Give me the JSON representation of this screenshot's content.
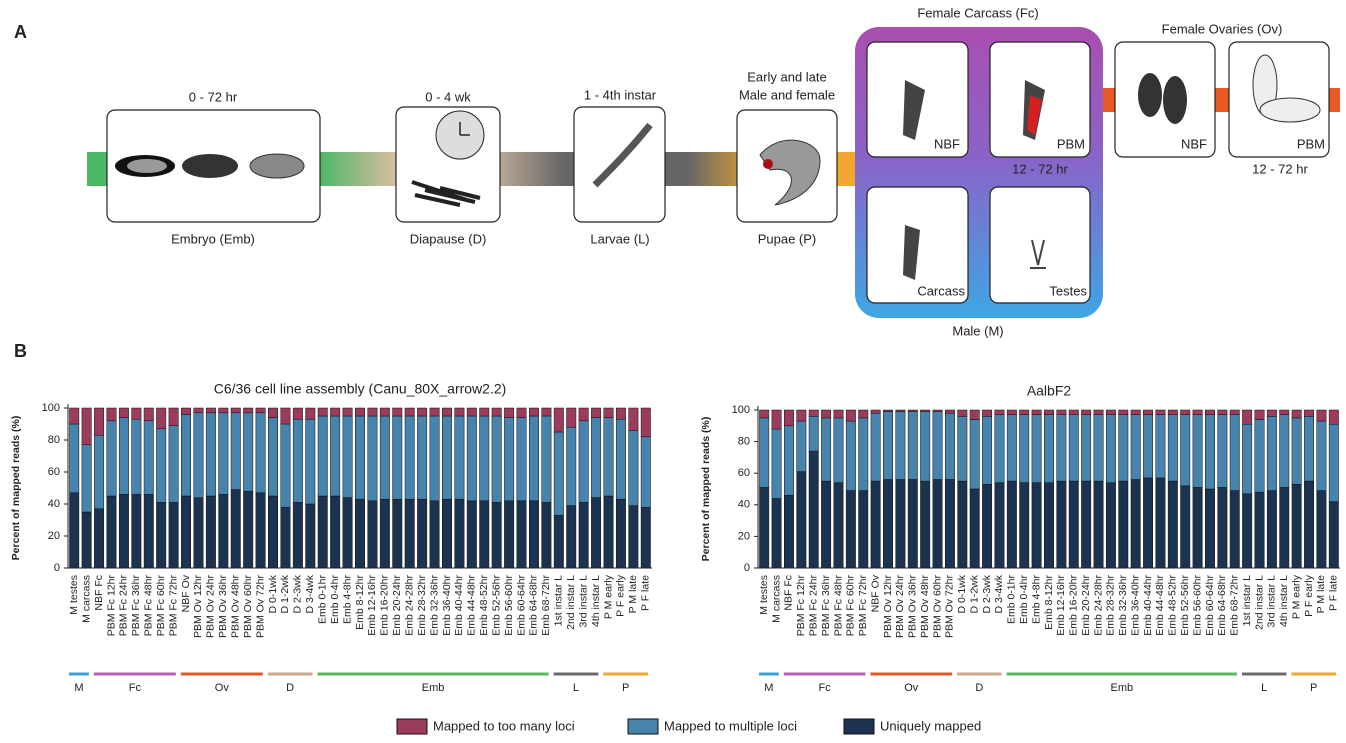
{
  "panels": {
    "a": "A",
    "b": "B"
  },
  "diagram": {
    "embryo": {
      "top": "0 - 72 hr",
      "label": "Embryo (Emb)"
    },
    "diapause": {
      "top": "0 - 4 wk",
      "label": "Diapause (D)"
    },
    "larvae": {
      "top": "1 - 4th instar",
      "label": "Larvae (L)"
    },
    "pupae": {
      "top": [
        "Early and late",
        "Male and female"
      ],
      "label": "Pupae (P)"
    },
    "female_carcass": {
      "title": "Female Carcass (Fc)",
      "nbf": "NBF",
      "pbm": "PBM",
      "pbm_time": "12 - 72 hr"
    },
    "male": {
      "title": "Male (M)",
      "carcass": "Carcass",
      "testes": "Testes"
    },
    "ovaries": {
      "title": "Female Ovaries (Ov)",
      "nbf": "NBF",
      "pbm": "PBM",
      "pbm_time": "12 - 72 hr"
    }
  },
  "chart_data": [
    {
      "type": "stacked-bar",
      "title": "C6/36 cell line assembly (Canu_80X_arrow2.2)",
      "ylabel": "Percent of mapped reads (%)",
      "ylim": [
        0,
        100
      ],
      "yticks": [
        0,
        20,
        40,
        60,
        80,
        100
      ],
      "categories": [
        "M testes",
        "M carcass",
        "NBF Fc",
        "PBM Fc 12hr",
        "PBM Fc 24hr",
        "PBM Fc 36hr",
        "PBM Fc 48hr",
        "PBM Fc 60hr",
        "PBM Fc 72hr",
        "NBF Ov",
        "PBM Ov 12hr",
        "PBM Ov 24hr",
        "PBM Ov 36hr",
        "PBM Ov 48hr",
        "PBM Ov 60hr",
        "PBM Ov 72hr",
        "D 0-1wk",
        "D 1-2wk",
        "D 2-3wk",
        "D 3-4wk",
        "Emb 0-1hr",
        "Emb 0-4hr",
        "Emb 4-8hr",
        "Emb 8-12hr",
        "Emb 12-16hr",
        "Emb 16-20hr",
        "Emb 20-24hr",
        "Emb 24-28hr",
        "Emb 28-32hr",
        "Emb 32-36hr",
        "Emb 36-40hr",
        "Emb 40-44hr",
        "Emb 44-48hr",
        "Emb 48-52hr",
        "Emb 52-56hr",
        "Emb 56-60hr",
        "Emb 60-64hr",
        "Emb 64-68hr",
        "Emb 68-72hr",
        "1st instar L",
        "2nd instar L",
        "3rd instar L",
        "4th instar L",
        "P M early",
        "P F early",
        "P M late",
        "P F late"
      ],
      "series": [
        {
          "name": "Uniquely mapped",
          "color": "#1b3351",
          "values": [
            47,
            35,
            37,
            45,
            46,
            46,
            46,
            41,
            41,
            45,
            44,
            45,
            46,
            49,
            48,
            47,
            45,
            38,
            41,
            40,
            45,
            45,
            44,
            43,
            42,
            43,
            43,
            43,
            43,
            42,
            43,
            43,
            42,
            42,
            41,
            42,
            42,
            42,
            41,
            33,
            39,
            41,
            44,
            45,
            43,
            39,
            38
          ]
        },
        {
          "name": "Mapped to multiple loci",
          "color": "#4683ad",
          "values": [
            43,
            42,
            46,
            47,
            48,
            47,
            46,
            46,
            48,
            51,
            53,
            52,
            51,
            48,
            49,
            50,
            49,
            52,
            52,
            53,
            50,
            50,
            51,
            52,
            53,
            52,
            52,
            52,
            52,
            53,
            52,
            52,
            53,
            53,
            54,
            52,
            52,
            53,
            54,
            52,
            49,
            51,
            50,
            49,
            50,
            47,
            44
          ]
        },
        {
          "name": "Mapped to too many loci",
          "color": "#9b3b5e",
          "values": [
            10,
            23,
            17,
            8,
            6,
            7,
            8,
            13,
            11,
            4,
            3,
            3,
            3,
            3,
            3,
            3,
            6,
            10,
            7,
            7,
            5,
            5,
            5,
            5,
            5,
            5,
            5,
            5,
            5,
            5,
            5,
            5,
            5,
            5,
            5,
            6,
            6,
            5,
            5,
            15,
            12,
            8,
            6,
            6,
            7,
            14,
            18
          ]
        }
      ],
      "groups": [
        {
          "label": "M",
          "color": "#3a9fd8",
          "bars": 2
        },
        {
          "label": "Fc",
          "color": "#b45fb0",
          "bars": 7
        },
        {
          "label": "Ov",
          "color": "#e5582a",
          "bars": 7
        },
        {
          "label": "D",
          "color": "#c9a98a",
          "bars": 4
        },
        {
          "label": "Emb",
          "color": "#5cb85c",
          "bars": 19
        },
        {
          "label": "L",
          "color": "#6b6b6b",
          "bars": 4
        },
        {
          "label": "P",
          "color": "#f0a830",
          "bars": 4
        }
      ]
    },
    {
      "type": "stacked-bar",
      "title": "AalbF2",
      "ylabel": "Percent of mapped reads (%)",
      "ylim": [
        0,
        100
      ],
      "yticks": [
        0,
        20,
        40,
        60,
        80,
        100
      ],
      "categories": [
        "M testes",
        "M carcass",
        "NBF Fc",
        "PBM Fc 12hr",
        "PBM Fc 24hr",
        "PBM Fc 36hr",
        "PBM Fc 48hr",
        "PBM Fc 60hr",
        "PBM Fc 72hr",
        "NBF Ov",
        "PBM Ov 12hr",
        "PBM Ov 24hr",
        "PBM Ov 36hr",
        "PBM Ov 48hr",
        "PBM Ov 60hr",
        "PBM Ov 72hr",
        "D 0-1wk",
        "D 1-2wk",
        "D 2-3wk",
        "D 3-4wk",
        "Emb 0-1hr",
        "Emb 0-4hr",
        "Emb 4-8hr",
        "Emb 8-12hr",
        "Emb 12-16hr",
        "Emb 16-20hr",
        "Emb 20-24hr",
        "Emb 24-28hr",
        "Emb 28-32hr",
        "Emb 32-36hr",
        "Emb 36-40hr",
        "Emb 40-44hr",
        "Emb 44-48hr",
        "Emb 48-52hr",
        "Emb 52-56hr",
        "Emb 56-60hr",
        "Emb 60-64hr",
        "Emb 64-68hr",
        "Emb 68-72hr",
        "1st instar L",
        "2nd instar L",
        "3rd instar L",
        "4th instar L",
        "P M early",
        "P F early",
        "P M late",
        "P F late"
      ],
      "series": [
        {
          "name": "Uniquely mapped",
          "color": "#1b3351",
          "values": [
            51,
            44,
            46,
            61,
            74,
            55,
            54,
            49,
            49,
            55,
            56,
            56,
            56,
            55,
            56,
            56,
            55,
            50,
            53,
            54,
            55,
            54,
            54,
            54,
            55,
            55,
            55,
            55,
            54,
            55,
            56,
            57,
            57,
            55,
            52,
            51,
            50,
            51,
            49,
            47,
            48,
            49,
            51,
            53,
            55,
            49,
            42
          ]
        },
        {
          "name": "Mapped to multiple loci",
          "color": "#4683ad",
          "values": [
            44,
            44,
            44,
            32,
            22,
            40,
            41,
            44,
            46,
            43,
            43,
            43,
            43,
            44,
            43,
            42,
            41,
            44,
            43,
            43,
            42,
            43,
            43,
            43,
            42,
            42,
            42,
            42,
            43,
            42,
            41,
            40,
            40,
            42,
            45,
            46,
            47,
            46,
            48,
            44,
            46,
            47,
            46,
            42,
            41,
            44,
            49
          ]
        },
        {
          "name": "Mapped to too many loci",
          "color": "#9b3b5e",
          "values": [
            5,
            12,
            10,
            7,
            4,
            5,
            5,
            7,
            5,
            2,
            1,
            1,
            1,
            1,
            1,
            2,
            4,
            6,
            4,
            3,
            3,
            3,
            3,
            3,
            3,
            3,
            3,
            3,
            3,
            3,
            3,
            3,
            3,
            3,
            3,
            3,
            3,
            3,
            3,
            9,
            6,
            4,
            3,
            5,
            4,
            7,
            9
          ]
        }
      ],
      "groups": [
        {
          "label": "M",
          "color": "#3a9fd8",
          "bars": 2
        },
        {
          "label": "Fc",
          "color": "#b45fb0",
          "bars": 7
        },
        {
          "label": "Ov",
          "color": "#e5582a",
          "bars": 7
        },
        {
          "label": "D",
          "color": "#c9a98a",
          "bars": 4
        },
        {
          "label": "Emb",
          "color": "#5cb85c",
          "bars": 19
        },
        {
          "label": "L",
          "color": "#6b6b6b",
          "bars": 4
        },
        {
          "label": "P",
          "color": "#f0a830",
          "bars": 4
        }
      ]
    }
  ]
}
